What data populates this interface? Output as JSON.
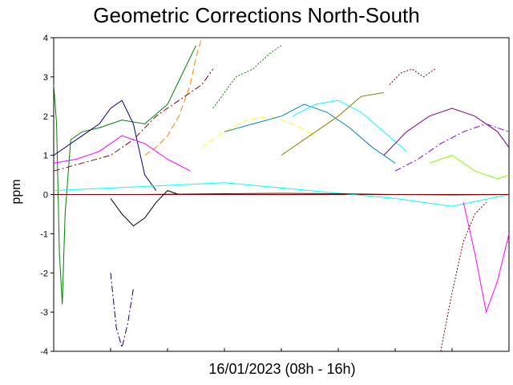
{
  "chart_data": {
    "type": "line",
    "title": "Geometric Corrections North-South",
    "xlabel": "16/01/2023 (08h - 16h)",
    "ylabel": "ppm",
    "ylim": [
      -4,
      4
    ],
    "yticks": [
      4,
      3,
      2,
      1,
      0,
      -1,
      -2,
      -3,
      -4
    ],
    "xrange_hours": [
      8,
      16
    ],
    "grid": false,
    "legend": "none",
    "series": [
      {
        "color": "#008000",
        "style": "solid",
        "x": [
          8.0,
          8.05,
          8.1,
          8.15,
          8.2,
          8.3,
          8.5,
          8.8,
          9.2,
          9.6,
          10.0,
          10.3,
          10.5
        ],
        "y": [
          2.8,
          1.8,
          -1.5,
          -2.8,
          -0.5,
          1.4,
          1.6,
          1.7,
          1.9,
          1.8,
          2.3,
          3.2,
          3.8
        ]
      },
      {
        "color": "#000080",
        "style": "solid",
        "x": [
          8.0,
          8.5,
          8.8,
          9.0,
          9.2,
          9.4,
          9.6,
          9.8
        ],
        "y": [
          1.0,
          1.5,
          1.8,
          2.2,
          2.4,
          1.8,
          0.5,
          0.1
        ]
      },
      {
        "color": "#000000",
        "style": "solid",
        "x": [
          9.0,
          9.2,
          9.4,
          9.6,
          9.8,
          10.0,
          10.2
        ],
        "y": [
          -0.1,
          -0.5,
          -0.8,
          -0.6,
          -0.2,
          0.1,
          0.0
        ]
      },
      {
        "color": "#800000",
        "style": "dashdot",
        "x": [
          8.0,
          9.0,
          9.4,
          9.8,
          10.2,
          10.6,
          10.8
        ],
        "y": [
          0.6,
          1.0,
          1.4,
          2.0,
          2.4,
          2.8,
          3.2
        ]
      },
      {
        "color": "#FF8000",
        "style": "dashed",
        "x": [
          9.6,
          9.8,
          10.0,
          10.2,
          10.4,
          10.5,
          10.6
        ],
        "y": [
          1.0,
          1.2,
          1.5,
          2.0,
          2.8,
          3.5,
          4.0
        ]
      },
      {
        "color": "#FF00FF",
        "style": "solid",
        "x": [
          8.0,
          8.4,
          8.8,
          9.2,
          9.6,
          10.0,
          10.4
        ],
        "y": [
          0.8,
          0.9,
          1.1,
          1.5,
          1.3,
          0.9,
          0.6
        ]
      },
      {
        "color": "#008000",
        "style": "dotted",
        "x": [
          10.8,
          11.0,
          11.2,
          11.5,
          11.8,
          12.0
        ],
        "y": [
          2.2,
          2.6,
          3.0,
          3.2,
          3.6,
          3.8
        ]
      },
      {
        "color": "#FFFF00",
        "style": "dashed",
        "x": [
          10.6,
          11.0,
          11.4,
          11.8,
          12.2,
          12.6
        ],
        "y": [
          1.2,
          1.6,
          1.9,
          2.0,
          1.8,
          1.5
        ]
      },
      {
        "color": "#0080C0",
        "style": "solid",
        "x": [
          11.0,
          11.5,
          12.0,
          12.4,
          12.8,
          13.2,
          13.6,
          14.0
        ],
        "y": [
          1.6,
          1.8,
          2.0,
          2.3,
          2.1,
          1.7,
          1.2,
          0.8
        ]
      },
      {
        "color": "#00FFFF",
        "style": "solid",
        "x": [
          12.2,
          12.6,
          13.0,
          13.4,
          13.8,
          14.2
        ],
        "y": [
          2.0,
          2.3,
          2.4,
          2.1,
          1.6,
          1.1
        ]
      },
      {
        "color": "#808000",
        "style": "solid",
        "x": [
          12.0,
          12.5,
          13.0,
          13.4,
          13.8
        ],
        "y": [
          1.0,
          1.5,
          2.0,
          2.5,
          2.6
        ]
      },
      {
        "color": "#800080",
        "style": "solid",
        "x": [
          13.8,
          14.2,
          14.6,
          15.0,
          15.4,
          15.8,
          16.0
        ],
        "y": [
          1.0,
          1.6,
          2.0,
          2.2,
          2.0,
          1.6,
          1.2
        ]
      },
      {
        "color": "#8000FF",
        "style": "dashdot",
        "x": [
          14.0,
          14.4,
          14.8,
          15.2,
          15.6,
          16.0
        ],
        "y": [
          0.6,
          0.9,
          1.3,
          1.6,
          1.8,
          1.6
        ]
      },
      {
        "color": "#800000",
        "style": "dotted",
        "x": [
          13.9,
          14.1,
          14.3,
          14.5,
          14.7
        ],
        "y": [
          2.8,
          3.1,
          3.2,
          3.0,
          3.2
        ]
      },
      {
        "color": "#80FF00",
        "style": "solid",
        "x": [
          14.6,
          15.0,
          15.4,
          15.8,
          16.0
        ],
        "y": [
          0.8,
          1.0,
          0.6,
          0.4,
          0.5
        ]
      },
      {
        "color": "#00FFFF",
        "style": "solid",
        "x": [
          8.0,
          9.5,
          11.0,
          12.5,
          14.0,
          15.0,
          16.0
        ],
        "y": [
          0.1,
          0.2,
          0.3,
          0.1,
          -0.1,
          -0.3,
          0.0
        ]
      },
      {
        "color": "#FF00FF",
        "style": "solid",
        "x": [
          15.2,
          15.4,
          15.6,
          15.8,
          16.0
        ],
        "y": [
          -0.2,
          -1.5,
          -3.0,
          -2.2,
          -1.0
        ]
      },
      {
        "color": "#800000",
        "style": "dotted",
        "x": [
          14.8,
          15.0,
          15.2,
          15.4,
          15.6
        ],
        "y": [
          -4.0,
          -2.5,
          -1.2,
          -0.5,
          -0.2
        ]
      },
      {
        "color": "#000080",
        "style": "dashdot",
        "x": [
          9.0,
          9.1,
          9.2,
          9.3,
          9.4
        ],
        "y": [
          -2.0,
          -3.4,
          -3.9,
          -3.3,
          -2.4
        ]
      },
      {
        "color": "#800000",
        "style": "solid",
        "x": [
          8.0,
          9.5,
          11.0,
          12.0,
          13.0,
          14.0,
          15.0,
          16.0
        ],
        "y": [
          0.0,
          0.0,
          0.02,
          0.03,
          0.02,
          0.0,
          -0.01,
          0.0
        ]
      }
    ]
  }
}
